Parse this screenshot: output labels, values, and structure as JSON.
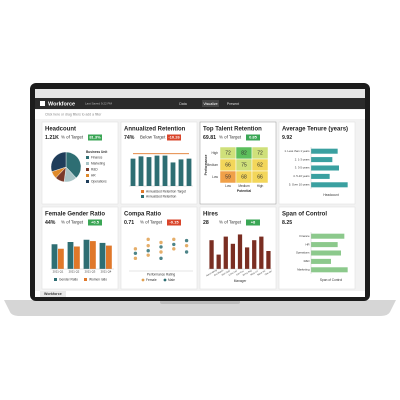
{
  "app": {
    "name": "Workforce",
    "subtitle": "Last Saved 9:22 PM",
    "tabs": [
      "Data",
      "Visualize",
      "Present"
    ],
    "filter_hint": "Click here or drag filters to add a filter",
    "bottom_tab": "Workforce"
  },
  "cards": [
    {
      "title": "Headcount",
      "kpi": "1.21K",
      "kpi_label": "% of Target",
      "badge": "81.3%",
      "badge_color": "#3aa655",
      "chart": {
        "type": "pie",
        "legend_title": "Business Unit",
        "categories": [
          "Finance",
          "Marketing",
          "R&D",
          "HR",
          "Operations"
        ],
        "values": [
          38,
          14,
          10,
          8,
          30
        ],
        "colors": [
          "#2e6e73",
          "#a8c4c6",
          "#7a3a2a",
          "#e08a2a",
          "#1f3d5a"
        ]
      }
    },
    {
      "title": "Annualized Retention",
      "kpi": "74%",
      "kpi_label": "Below Target",
      "badge": "-10.26",
      "badge_color": "#d9452b",
      "chart": {
        "type": "bar_line",
        "categories": [
          null,
          null,
          null,
          null,
          null,
          null,
          null,
          null
        ],
        "ylim": [
          0,
          100
        ],
        "series": [
          {
            "name": "Annualized Retention",
            "color": "#2e6e73",
            "values": [
              72,
              78,
              76,
              80,
              80,
              62,
              70,
              72
            ]
          },
          {
            "name": "Annualized Retention Target",
            "color": "#e0782a",
            "values": [
              85,
              85,
              85,
              85,
              85,
              85,
              85,
              85
            ]
          }
        ]
      }
    },
    {
      "title": "Top Talent Retention",
      "kpi": "69.81",
      "kpi_label": "% of Target",
      "badge": "0.85",
      "badge_color": "#3aa655",
      "chart": {
        "type": "heatmap",
        "rows": [
          "High",
          "Medium",
          "Low"
        ],
        "columns": [
          "Low",
          "Medium",
          "High"
        ],
        "values": [
          [
            72,
            82,
            72
          ],
          [
            66,
            75,
            62
          ],
          [
            59,
            68,
            66
          ]
        ],
        "colors": [
          [
            "#cfe07a",
            "#5cbf5c",
            "#cfe07a"
          ],
          [
            "#f3d65a",
            "#cfe07a",
            "#f3d65a"
          ],
          [
            "#f0a048",
            "#f3d65a",
            "#f3d65a"
          ]
        ],
        "x_label": "Potential",
        "y_label": "Performance"
      }
    },
    {
      "title": "Average Tenure (years)",
      "kpi": "9.92",
      "chart": {
        "type": "hbar",
        "categories": [
          "1. Less than 1 years",
          "2. 1-3 years",
          "3. 3-5 years",
          "4. 5-10 years",
          "5. Over 10 years"
        ],
        "values": [
          40,
          32,
          42,
          28,
          55
        ],
        "xlim": [
          0,
          60
        ],
        "color": "#3aa0a0",
        "x_label": "Headcount"
      }
    },
    {
      "title": "Female Gender Ratio",
      "kpi": "44%",
      "kpi_label": "% of Target",
      "badge": "+0.5",
      "badge_color": "#3aa655",
      "chart": {
        "type": "grouped_bar",
        "categories": [
          "2021 Q1",
          "2021 Q2",
          "2021 Q3",
          "2021 Q4"
        ],
        "ylim": [
          0,
          80
        ],
        "series": [
          {
            "name": "Gender Ratio",
            "color": "#2e6e73",
            "values": [
              55,
              60,
              65,
              58
            ]
          },
          {
            "name": "Women ratio",
            "color": "#e0782a",
            "values": [
              45,
              50,
              62,
              52
            ]
          }
        ]
      }
    },
    {
      "title": "Compa Ratio",
      "kpi": "0.71",
      "kpi_label": "% of Target",
      "badge": "-0.15",
      "badge_color": "#d9452b",
      "chart": {
        "type": "scatter",
        "xlim": [
          0.5,
          5.5
        ],
        "ylim": [
          0.6,
          1.2
        ],
        "x_label": "Performance Rating",
        "series": [
          {
            "name": "Female",
            "color": "#e0a050",
            "x": [
              1,
              1,
              2,
              2,
              2,
              3,
              3,
              4,
              4,
              5
            ],
            "values": [
              0.8,
              0.95,
              0.85,
              1.0,
              1.1,
              0.9,
              1.05,
              0.95,
              1.1,
              1.0
            ]
          },
          {
            "name": "Male",
            "color": "#2e6e73",
            "x": [
              1,
              2,
              3,
              3,
              4,
              5,
              5
            ],
            "values": [
              0.88,
              0.92,
              0.8,
              0.98,
              1.02,
              0.9,
              1.08
            ]
          }
        ]
      }
    },
    {
      "title": "Hires",
      "kpi": "28",
      "kpi_label": "% of Target",
      "badge": "+8",
      "badge_color": "#3aa655",
      "chart": {
        "type": "bar",
        "categories": [
          "Aaron Wong",
          "Ana Martin",
          "Alan Dale",
          "Chris Lee",
          "Dan Fox",
          "Jenny Ray",
          "Mary Lin",
          "Steve Ko",
          "Tom Orr"
        ],
        "values": [
          40,
          20,
          45,
          35,
          48,
          30,
          40,
          45,
          25
        ],
        "ylim": [
          0,
          50
        ],
        "color": "#7a2e22",
        "x_label": "Manager"
      }
    },
    {
      "title": "Span of Control",
      "kpi": "8.25",
      "chart": {
        "type": "hbar",
        "categories": [
          "Finance",
          "HR",
          "Operations",
          "R&D",
          "Marketing"
        ],
        "values": [
          10,
          8,
          9,
          6,
          11
        ],
        "xlim": [
          0,
          12
        ],
        "color": "#8cc98c",
        "x_label": "Span of Control"
      }
    }
  ]
}
